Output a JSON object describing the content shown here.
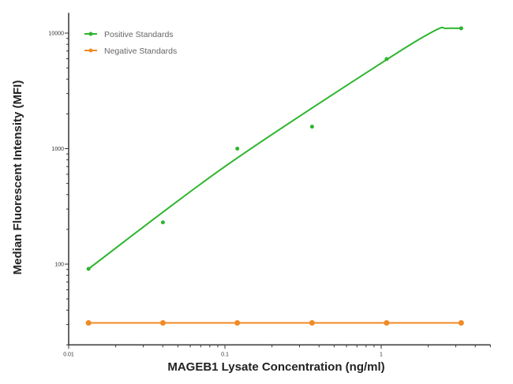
{
  "chart_data": {
    "type": "scatter",
    "title": "",
    "xlabel": "MAGEB1 Lysate Concentration (ng/ml)",
    "ylabel": "Median  Fluorescent Intensity  (MFI)",
    "xscale": "log",
    "yscale": "log",
    "xlim": [
      0.01,
      5
    ],
    "ylim": [
      20,
      15000
    ],
    "xticks": [
      0.01,
      0.1,
      1
    ],
    "xtick_labels": [
      "0.01",
      "0.1",
      "1"
    ],
    "yticks": [
      100,
      1000,
      10000
    ],
    "ytick_labels": [
      "100",
      "1000",
      "10000"
    ],
    "grid": false,
    "legend_position": "top-left",
    "series": [
      {
        "name": "Positive Standards",
        "color": "#2db52d",
        "x": [
          0.0134,
          0.0401,
          0.12,
          0.361,
          1.083,
          3.25
        ],
        "y": [
          91,
          230,
          1000,
          1550,
          5960,
          11000
        ],
        "fit_curve": {
          "x": [
            0.0134,
            0.1,
            1,
            2.2,
            2.6,
            3.25
          ],
          "y": [
            91,
            700,
            5500,
            10500,
            11000,
            11000
          ]
        }
      },
      {
        "name": "Negative Standards",
        "color": "#f08a24",
        "x": [
          0.0134,
          0.0401,
          0.12,
          0.361,
          1.083,
          3.25
        ],
        "y": [
          31,
          31,
          31,
          31,
          31,
          31
        ]
      }
    ]
  }
}
